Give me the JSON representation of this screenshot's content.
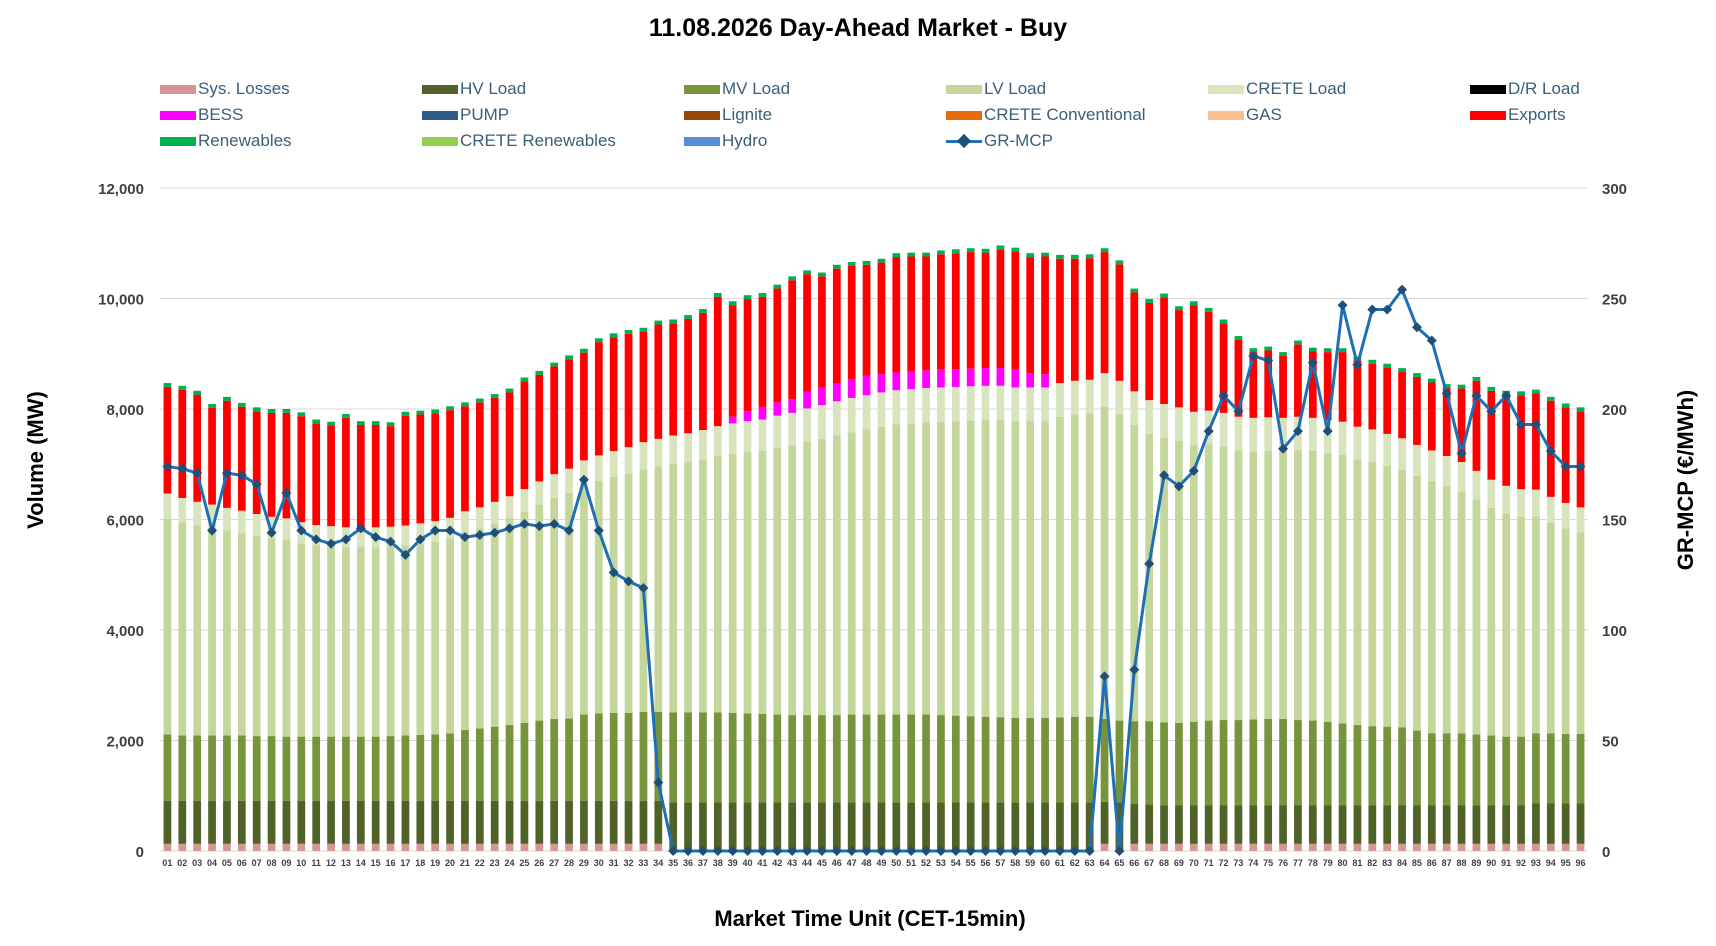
{
  "chart_data": {
    "type": "bar",
    "title": "11.08.2026  Day-Ahead Market - Buy",
    "xlabel": "Market Time Unit (CET-15min)",
    "ylabel": "Volume (MW)",
    "y2label": "GR-MCP (€/MWh)",
    "ylim": [
      0,
      12000
    ],
    "y2lim": [
      0,
      300
    ],
    "yticks": [
      "0",
      "2,000",
      "4,000",
      "6,000",
      "8,000",
      "10,000",
      "12,000"
    ],
    "y2ticks": [
      "0",
      "50",
      "100",
      "150",
      "200",
      "250",
      "300"
    ],
    "grid": "horizontal",
    "legend_position": "top",
    "categories": [
      "01",
      "02",
      "03",
      "04",
      "05",
      "06",
      "07",
      "08",
      "09",
      "10",
      "11",
      "12",
      "13",
      "14",
      "15",
      "16",
      "17",
      "18",
      "19",
      "20",
      "21",
      "22",
      "23",
      "24",
      "25",
      "26",
      "27",
      "28",
      "29",
      "30",
      "31",
      "32",
      "33",
      "34",
      "35",
      "36",
      "37",
      "38",
      "39",
      "40",
      "41",
      "42",
      "43",
      "44",
      "45",
      "46",
      "47",
      "48",
      "49",
      "50",
      "51",
      "52",
      "53",
      "54",
      "55",
      "56",
      "57",
      "58",
      "59",
      "60",
      "61",
      "62",
      "63",
      "64",
      "65",
      "66",
      "67",
      "68",
      "69",
      "70",
      "71",
      "72",
      "73",
      "74",
      "75",
      "76",
      "77",
      "78",
      "79",
      "80",
      "81",
      "82",
      "83",
      "84",
      "85",
      "86",
      "87",
      "88",
      "89",
      "90",
      "91",
      "92",
      "93",
      "94",
      "95",
      "96"
    ],
    "series": [
      {
        "name": "Sys. Losses",
        "color": "#d99594",
        "kind": "bar",
        "values": [
          130,
          130,
          130,
          130,
          130,
          130,
          130,
          130,
          130,
          130,
          130,
          130,
          130,
          130,
          130,
          130,
          130,
          130,
          130,
          130,
          130,
          130,
          130,
          130,
          130,
          130,
          130,
          130,
          130,
          130,
          130,
          130,
          130,
          130,
          0,
          0,
          0,
          0,
          0,
          0,
          0,
          0,
          0,
          0,
          0,
          0,
          0,
          0,
          0,
          0,
          0,
          0,
          0,
          0,
          0,
          0,
          0,
          0,
          0,
          0,
          0,
          0,
          0,
          130,
          0,
          130,
          130,
          130,
          130,
          130,
          130,
          130,
          130,
          130,
          130,
          130,
          130,
          130,
          130,
          130,
          130,
          130,
          130,
          130,
          130,
          130,
          130,
          130,
          130,
          130,
          130,
          130,
          130,
          130,
          130,
          130
        ]
      },
      {
        "name": "HV Load",
        "color": "#4f6228",
        "kind": "bar",
        "values": [
          780,
          780,
          780,
          780,
          780,
          780,
          780,
          780,
          780,
          780,
          780,
          780,
          780,
          780,
          780,
          780,
          780,
          780,
          780,
          780,
          780,
          780,
          780,
          780,
          780,
          780,
          780,
          780,
          780,
          780,
          780,
          780,
          780,
          780,
          880,
          880,
          880,
          880,
          880,
          880,
          880,
          880,
          880,
          880,
          880,
          880,
          880,
          880,
          880,
          880,
          880,
          880,
          880,
          880,
          880,
          880,
          880,
          880,
          880,
          880,
          880,
          880,
          880,
          760,
          880,
          720,
          710,
          700,
          700,
          700,
          700,
          700,
          700,
          700,
          700,
          700,
          700,
          700,
          700,
          700,
          700,
          700,
          700,
          700,
          700,
          700,
          700,
          700,
          700,
          700,
          700,
          700,
          730,
          730,
          730,
          730
        ]
      },
      {
        "name": "MV Load",
        "color": "#77933c",
        "kind": "bar",
        "values": [
          1200,
          1180,
          1180,
          1180,
          1180,
          1180,
          1170,
          1170,
          1160,
          1160,
          1160,
          1160,
          1160,
          1160,
          1160,
          1170,
          1180,
          1190,
          1200,
          1220,
          1280,
          1310,
          1340,
          1370,
          1410,
          1450,
          1480,
          1490,
          1560,
          1580,
          1590,
          1590,
          1610,
          1610,
          1630,
          1630,
          1630,
          1630,
          1620,
          1610,
          1600,
          1590,
          1580,
          1580,
          1580,
          1580,
          1590,
          1590,
          1590,
          1590,
          1590,
          1590,
          1580,
          1570,
          1560,
          1550,
          1540,
          1530,
          1530,
          1530,
          1540,
          1550,
          1550,
          1500,
          1480,
          1500,
          1510,
          1500,
          1490,
          1510,
          1530,
          1540,
          1540,
          1550,
          1560,
          1560,
          1540,
          1530,
          1510,
          1480,
          1450,
          1430,
          1420,
          1410,
          1350,
          1300,
          1300,
          1300,
          1280,
          1260,
          1240,
          1240,
          1270,
          1270,
          1260,
          1260
        ]
      },
      {
        "name": "LV Load",
        "color": "#c3d69b",
        "kind": "bar",
        "values": [
          3910,
          3860,
          3800,
          3760,
          3710,
          3660,
          3620,
          3580,
          3560,
          3500,
          3460,
          3440,
          3430,
          3430,
          3430,
          3430,
          3440,
          3460,
          3490,
          3530,
          3580,
          3620,
          3680,
          3740,
          3820,
          3910,
          4000,
          4080,
          4150,
          4210,
          4270,
          4330,
          4390,
          4440,
          4500,
          4530,
          4580,
          4640,
          4690,
          4730,
          4760,
          4830,
          4880,
          4950,
          5000,
          5060,
          5110,
          5160,
          5210,
          5250,
          5270,
          5290,
          5310,
          5330,
          5350,
          5370,
          5380,
          5370,
          5370,
          5370,
          5440,
          5470,
          5490,
          5650,
          5540,
          5360,
          5200,
          5150,
          5100,
          5000,
          5000,
          4950,
          4880,
          4850,
          4850,
          4850,
          4890,
          4880,
          4860,
          4860,
          4810,
          4780,
          4720,
          4660,
          4610,
          4570,
          4480,
          4380,
          4250,
          4120,
          4040,
          3990,
          3930,
          3810,
          3720,
          3650
        ]
      },
      {
        "name": "CRETE Load",
        "color": "#d7e4bd",
        "kind": "bar",
        "values": [
          450,
          440,
          430,
          420,
          410,
          410,
          400,
          390,
          390,
          380,
          370,
          370,
          360,
          360,
          360,
          360,
          360,
          370,
          370,
          370,
          380,
          380,
          390,
          400,
          410,
          420,
          430,
          440,
          450,
          460,
          470,
          480,
          490,
          500,
          510,
          520,
          530,
          540,
          550,
          560,
          570,
          580,
          590,
          600,
          610,
          620,
          620,
          620,
          620,
          620,
          620,
          620,
          620,
          620,
          620,
          620,
          620,
          610,
          610,
          610,
          610,
          610,
          610,
          610,
          610,
          610,
          610,
          610,
          610,
          610,
          610,
          610,
          610,
          610,
          610,
          600,
          600,
          600,
          600,
          600,
          590,
          590,
          580,
          570,
          560,
          550,
          540,
          530,
          520,
          510,
          500,
          490,
          480,
          470,
          460,
          450
        ]
      },
      {
        "name": "D/R Load",
        "color": "#000000",
        "kind": "bar",
        "values": [
          0,
          0,
          0,
          0,
          0,
          0,
          0,
          0,
          0,
          0,
          0,
          0,
          0,
          0,
          0,
          0,
          0,
          0,
          0,
          0,
          0,
          0,
          0,
          0,
          0,
          0,
          0,
          0,
          0,
          0,
          0,
          0,
          0,
          0,
          0,
          0,
          0,
          0,
          0,
          0,
          0,
          0,
          0,
          0,
          0,
          0,
          0,
          0,
          0,
          0,
          0,
          0,
          0,
          0,
          0,
          0,
          0,
          0,
          0,
          0,
          0,
          0,
          0,
          0,
          0,
          0,
          0,
          0,
          0,
          0,
          0,
          0,
          0,
          0,
          0,
          0,
          0,
          0,
          0,
          0,
          0,
          0,
          0,
          0,
          0,
          0,
          0,
          0,
          0,
          0,
          0,
          0,
          0,
          0,
          0,
          0
        ]
      },
      {
        "name": "BESS",
        "color": "#ff00ff",
        "kind": "bar",
        "values": [
          0,
          0,
          0,
          0,
          0,
          0,
          0,
          0,
          0,
          0,
          0,
          0,
          0,
          0,
          0,
          0,
          0,
          0,
          0,
          0,
          0,
          0,
          0,
          0,
          0,
          0,
          0,
          0,
          0,
          0,
          0,
          0,
          0,
          0,
          0,
          0,
          0,
          0,
          120,
          180,
          220,
          240,
          250,
          300,
          320,
          330,
          340,
          350,
          330,
          320,
          320,
          320,
          320,
          320,
          320,
          320,
          320,
          320,
          260,
          240,
          0,
          0,
          0,
          0,
          0,
          0,
          0,
          0,
          0,
          0,
          0,
          0,
          0,
          0,
          0,
          0,
          0,
          0,
          0,
          0,
          0,
          0,
          0,
          0,
          0,
          0,
          0,
          0,
          0,
          0,
          0,
          0,
          0,
          0,
          0,
          0
        ]
      },
      {
        "name": "PUMP",
        "color": "#2e5c8a",
        "kind": "bar",
        "values": [
          0,
          0,
          0,
          0,
          0,
          0,
          0,
          0,
          0,
          0,
          0,
          0,
          0,
          0,
          0,
          0,
          0,
          0,
          0,
          0,
          0,
          0,
          0,
          0,
          0,
          0,
          0,
          0,
          0,
          0,
          0,
          0,
          0,
          0,
          0,
          0,
          0,
          0,
          0,
          0,
          0,
          0,
          0,
          0,
          0,
          0,
          0,
          0,
          0,
          0,
          0,
          0,
          0,
          0,
          0,
          0,
          0,
          0,
          0,
          0,
          0,
          0,
          0,
          0,
          0,
          0,
          0,
          0,
          0,
          0,
          0,
          0,
          0,
          0,
          0,
          0,
          0,
          0,
          0,
          0,
          0,
          0,
          0,
          0,
          0,
          0,
          0,
          0,
          0,
          0,
          0,
          0,
          0,
          0,
          0,
          0
        ]
      },
      {
        "name": "Exports",
        "color": "#ff0000",
        "kind": "bar",
        "values": [
          1930,
          1960,
          1940,
          1750,
          1940,
          1880,
          1860,
          1880,
          1910,
          1920,
          1840,
          1820,
          1980,
          1850,
          1850,
          1820,
          1990,
          1970,
          1950,
          1950,
          1900,
          1900,
          1880,
          1880,
          1950,
          1930,
          1950,
          1980,
          1950,
          2050,
          2060,
          2050,
          2000,
          2070,
          2030,
          2070,
          2120,
          2340,
          2020,
          2030,
          2000,
          2060,
          2150,
          2130,
          2010,
          2070,
          2050,
          2010,
          2020,
          2090,
          2080,
          2060,
          2090,
          2100,
          2110,
          2090,
          2150,
          2140,
          2100,
          2130,
          2250,
          2210,
          2200,
          2190,
          2110,
          1790,
          1760,
          1930,
          1760,
          1930,
          1790,
          1620,
          1390,
          1190,
          1210,
          1120,
          1310,
          1200,
          1230,
          1260,
          1200,
          1190,
          1200,
          1200,
          1230,
          1230,
          1230,
          1330,
          1630,
          1610,
          1650,
          1700,
          1740,
          1740,
          1730,
          1740
        ]
      },
      {
        "name": "Renewables",
        "color": "#00b050",
        "kind": "bar",
        "values": [
          70,
          70,
          70,
          70,
          70,
          70,
          70,
          70,
          70,
          70,
          70,
          70,
          70,
          70,
          70,
          70,
          70,
          70,
          70,
          70,
          70,
          70,
          70,
          70,
          70,
          70,
          70,
          70,
          70,
          70,
          70,
          70,
          70,
          70,
          70,
          70,
          70,
          70,
          70,
          70,
          70,
          70,
          70,
          70,
          70,
          70,
          70,
          70,
          70,
          70,
          70,
          70,
          70,
          70,
          70,
          70,
          70,
          70,
          70,
          70,
          70,
          70,
          70,
          70,
          70,
          70,
          70,
          70,
          70,
          70,
          70,
          70,
          70,
          70,
          70,
          70,
          70,
          70,
          70,
          70,
          70,
          70,
          70,
          70,
          70,
          70,
          70,
          70,
          70,
          70,
          70,
          70,
          70,
          70,
          70,
          70
        ]
      },
      {
        "name": "GR-MCP",
        "color": "#1f6fb5",
        "kind": "line",
        "axis": "y2",
        "values": [
          174,
          173,
          171,
          145,
          171,
          170,
          166,
          144,
          162,
          145,
          141,
          139,
          141,
          146,
          142,
          140,
          134,
          141,
          145,
          145,
          142,
          143,
          144,
          146,
          148,
          147,
          148,
          145,
          168,
          145,
          126,
          122,
          119,
          31,
          0,
          0,
          0,
          0,
          0,
          0,
          0,
          0,
          0,
          0,
          0,
          0,
          0,
          0,
          0,
          0,
          0,
          0,
          0,
          0,
          0,
          0,
          0,
          0,
          0,
          0,
          0,
          0,
          0,
          79,
          0,
          82,
          130,
          170,
          165,
          172,
          190,
          206,
          199,
          224,
          222,
          182,
          190,
          221,
          190,
          247,
          220,
          245,
          245,
          254,
          237,
          231,
          207,
          180,
          206,
          199,
          206,
          193,
          193,
          181,
          174,
          174
        ]
      }
    ]
  }
}
